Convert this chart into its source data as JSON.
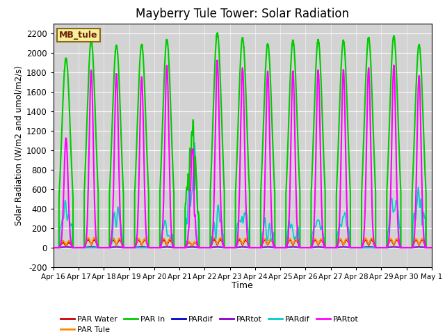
{
  "title": "Mayberry Tule Tower: Solar Radiation",
  "xlabel": "Time",
  "ylabel": "Solar Radiation (W/m2 and umol/m2/s)",
  "ylim": [
    -200,
    2300
  ],
  "yticks": [
    -200,
    0,
    200,
    400,
    600,
    800,
    1000,
    1200,
    1400,
    1600,
    1800,
    2000,
    2200
  ],
  "xtick_labels": [
    "Apr 16",
    "Apr 17",
    "Apr 18",
    "Apr 19",
    "Apr 20",
    "Apr 21",
    "Apr 22",
    "Apr 23",
    "Apr 24",
    "Apr 25",
    "Apr 26",
    "Apr 27",
    "Apr 28",
    "Apr 29",
    "Apr 30",
    "May 1"
  ],
  "bg_color": "#d3d3d3",
  "legend_label": "MB_tule",
  "legend_box_color": "#f5f0a0",
  "legend_box_edge": "#8b6914",
  "n_days": 15,
  "pts_per_day": 288,
  "seed": 42,
  "par_in_peaks": [
    1940,
    2120,
    2075,
    2080,
    2130,
    1200,
    2200,
    2150,
    2090,
    2120,
    2130,
    2120,
    2150,
    2170,
    2080
  ],
  "par_tot_mag_peaks": [
    1120,
    1820,
    1780,
    1750,
    1870,
    1020,
    1920,
    1840,
    1800,
    1810,
    1820,
    1820,
    1840,
    1870,
    1760
  ],
  "par_dif_cy_peaks": [
    320,
    0,
    290,
    0,
    200,
    620,
    320,
    290,
    260,
    270,
    250,
    260,
    0,
    410,
    520
  ],
  "par_water_peaks": [
    55,
    85,
    80,
    80,
    80,
    55,
    85,
    80,
    80,
    80,
    80,
    80,
    80,
    80,
    80
  ],
  "par_tule_peaks": [
    70,
    100,
    95,
    90,
    95,
    60,
    100,
    95,
    90,
    90,
    90,
    90,
    95,
    90,
    90
  ],
  "par_dif_bl_peaks": [
    8,
    8,
    8,
    8,
    8,
    8,
    8,
    8,
    8,
    8,
    8,
    8,
    8,
    8,
    8
  ],
  "par_tot_pu_peaks": [
    10,
    10,
    10,
    10,
    10,
    10,
    10,
    10,
    10,
    10,
    10,
    10,
    10,
    10,
    10
  ]
}
